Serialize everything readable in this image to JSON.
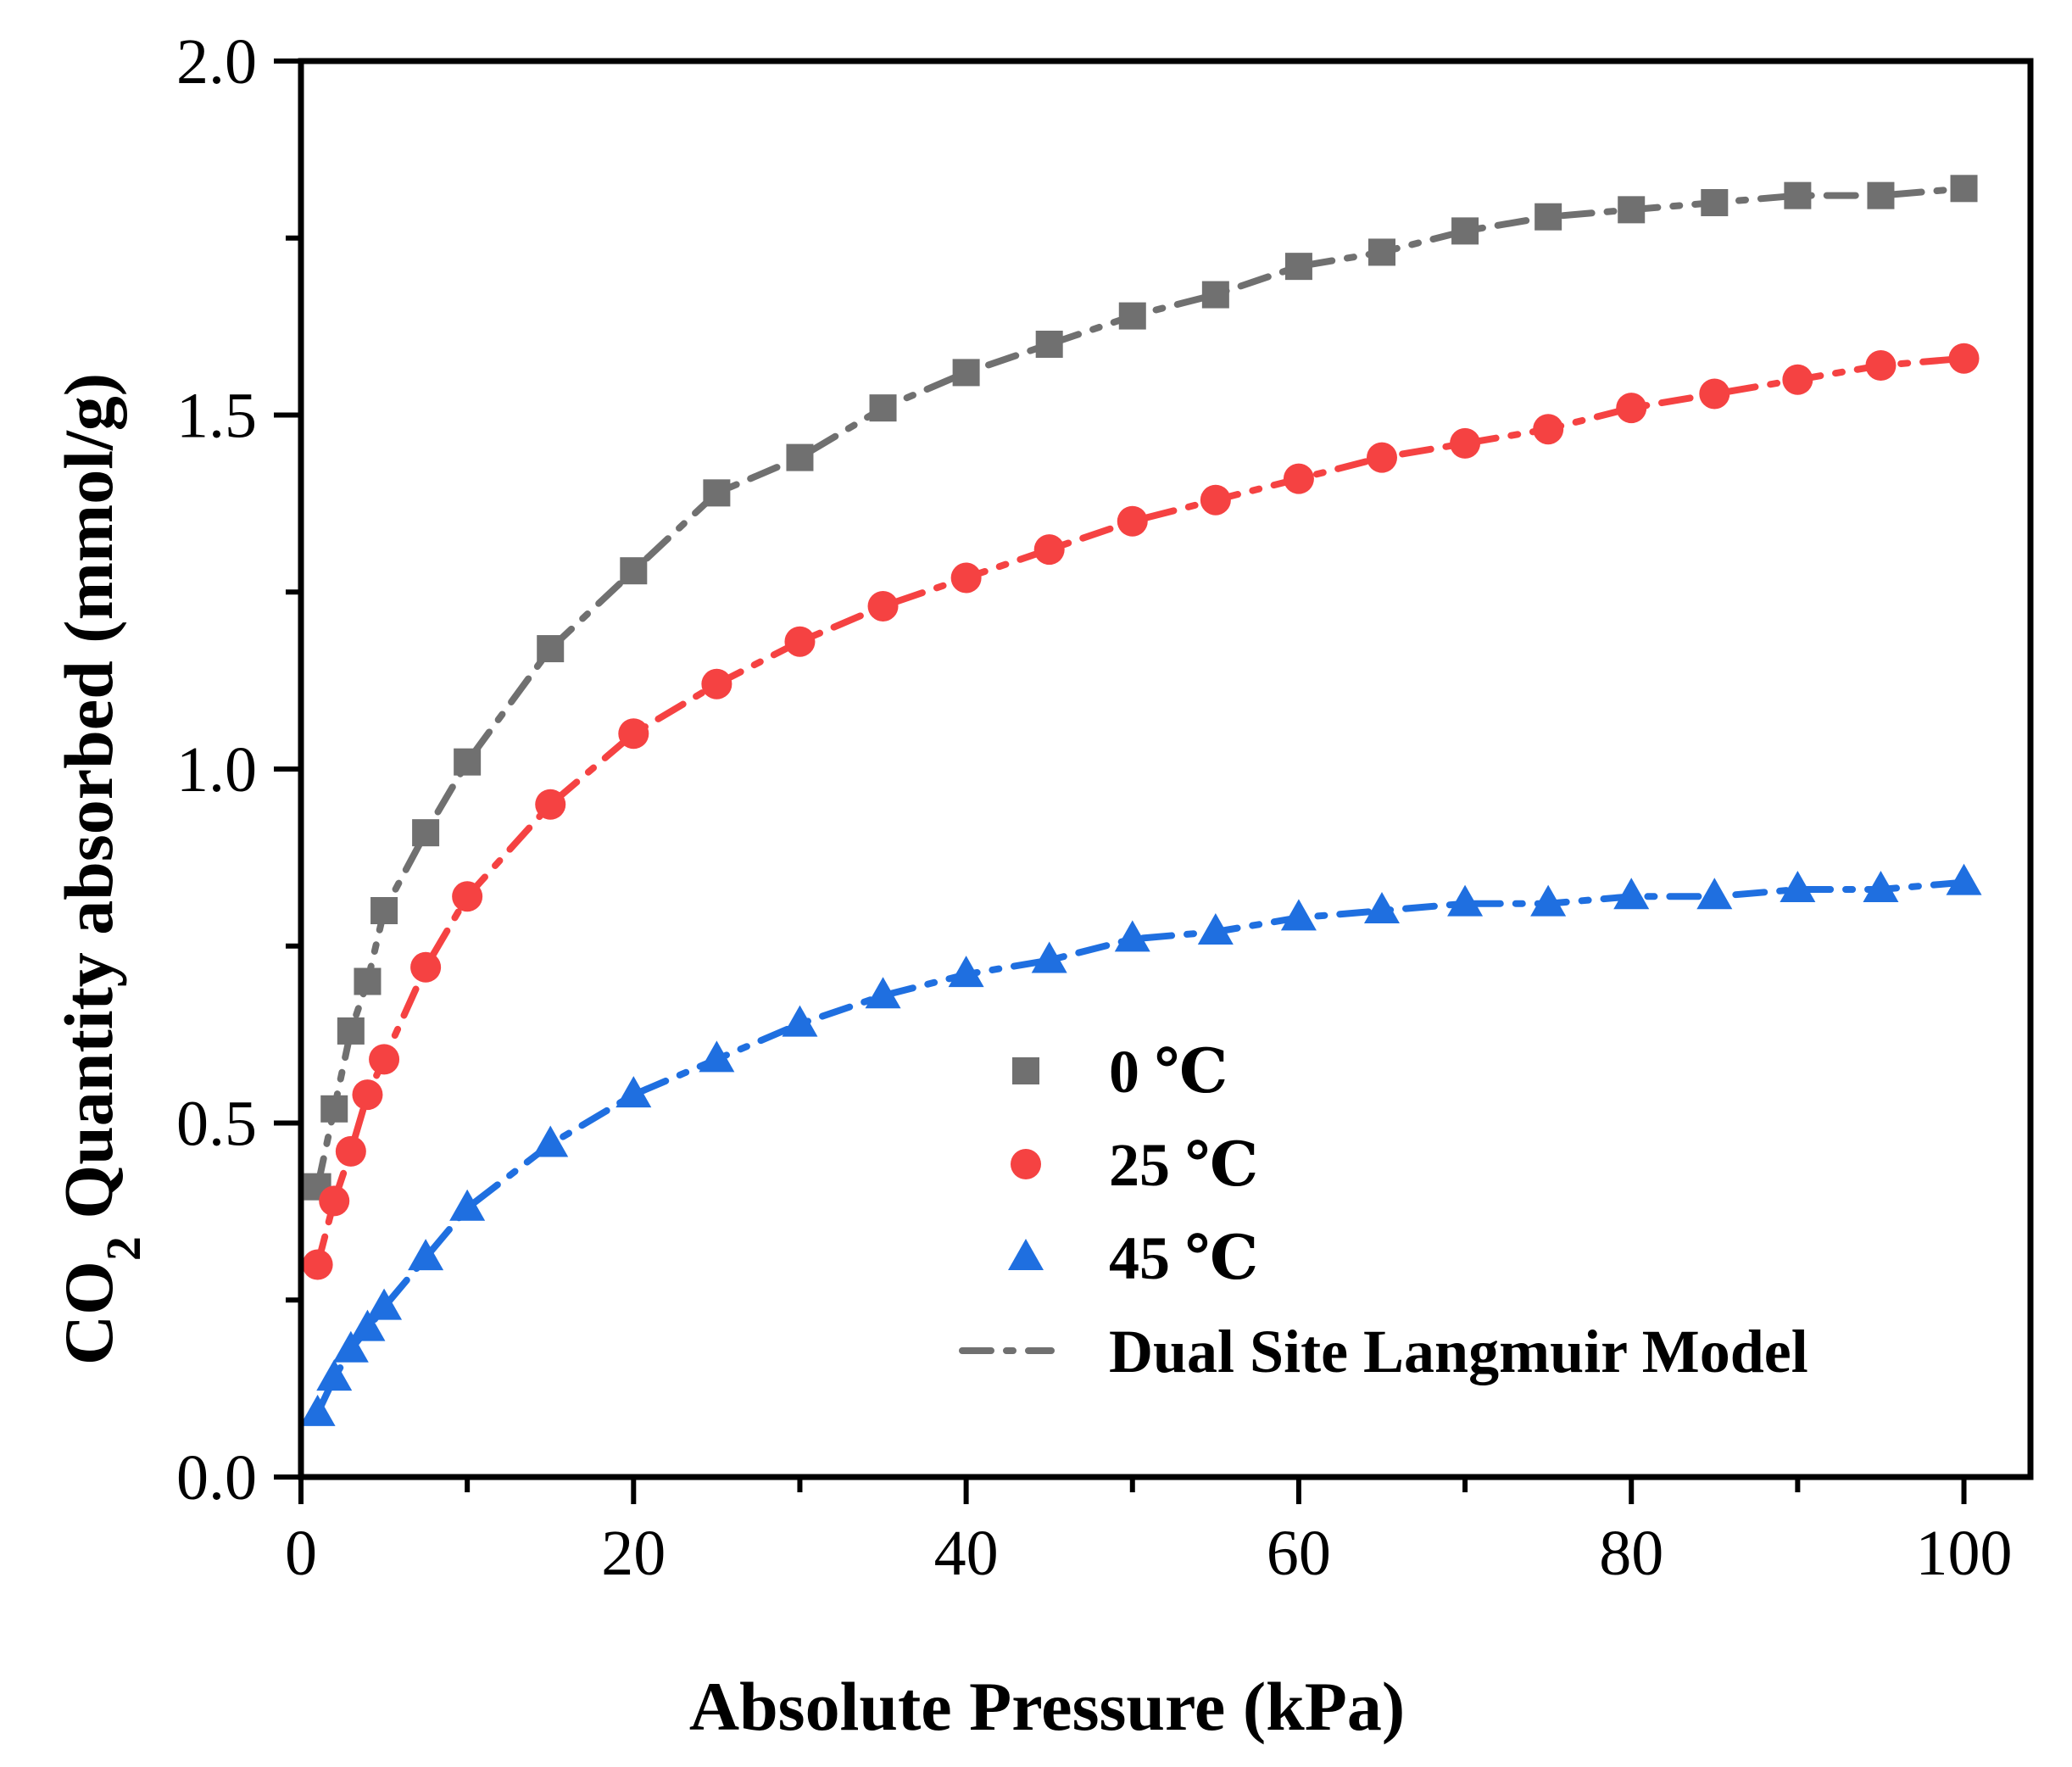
{
  "chart_data": {
    "type": "scatter",
    "title": "",
    "xlabel": "Absolute Pressure (kPa)",
    "ylabel_main": "CO",
    "ylabel_sub": "2",
    "ylabel_rest": " Quantity absorbed (mmol/g)",
    "xlim": [
      0,
      104
    ],
    "ylim": [
      0,
      2.0
    ],
    "xticks": [
      0,
      20,
      40,
      60,
      80,
      100
    ],
    "xtick_labels": [
      "0",
      "20",
      "40",
      "60",
      "80",
      "100"
    ],
    "yticks": [
      0.0,
      0.5,
      1.0,
      1.5,
      2.0
    ],
    "ytick_labels": [
      "0.0",
      "0.5",
      "1.0",
      "1.5",
      "2.0"
    ],
    "grid": false,
    "legend_position": "bottom-right",
    "series": [
      {
        "name": "0 ℃",
        "marker": "square",
        "color": "#707070",
        "x": [
          1,
          2,
          3,
          4,
          5,
          7.5,
          10,
          15,
          20,
          25,
          30,
          35,
          40,
          45,
          50,
          55,
          60,
          65,
          70,
          75,
          80,
          85,
          90,
          95,
          100
        ],
        "y": [
          0.41,
          0.52,
          0.63,
          0.7,
          0.8,
          0.91,
          1.01,
          1.17,
          1.28,
          1.39,
          1.44,
          1.51,
          1.56,
          1.6,
          1.64,
          1.67,
          1.71,
          1.73,
          1.76,
          1.78,
          1.79,
          1.8,
          1.81,
          1.81,
          1.82
        ]
      },
      {
        "name": "25 ℃",
        "marker": "circle",
        "color": "#f54242",
        "x": [
          1,
          2,
          3,
          4,
          5,
          7.5,
          10,
          15,
          20,
          25,
          30,
          35,
          40,
          45,
          50,
          55,
          60,
          65,
          70,
          75,
          80,
          85,
          90,
          95,
          100
        ],
        "y": [
          0.3,
          0.39,
          0.46,
          0.54,
          0.59,
          0.72,
          0.82,
          0.95,
          1.05,
          1.12,
          1.18,
          1.23,
          1.27,
          1.31,
          1.35,
          1.38,
          1.41,
          1.44,
          1.46,
          1.48,
          1.51,
          1.53,
          1.55,
          1.57,
          1.58
        ]
      },
      {
        "name": "45 ℃",
        "marker": "triangle",
        "color": "#1f6fe0",
        "x": [
          1,
          2,
          3,
          4,
          5,
          7.5,
          10,
          15,
          20,
          25,
          30,
          35,
          40,
          45,
          50,
          55,
          60,
          65,
          70,
          75,
          80,
          85,
          90,
          95,
          100
        ],
        "y": [
          0.09,
          0.14,
          0.18,
          0.21,
          0.24,
          0.31,
          0.38,
          0.47,
          0.54,
          0.59,
          0.64,
          0.68,
          0.71,
          0.73,
          0.76,
          0.77,
          0.79,
          0.8,
          0.81,
          0.81,
          0.82,
          0.82,
          0.83,
          0.83,
          0.84
        ]
      }
    ],
    "model": {
      "name": "Dual Site Langmuir Model",
      "line_style": "dash-dot"
    }
  }
}
